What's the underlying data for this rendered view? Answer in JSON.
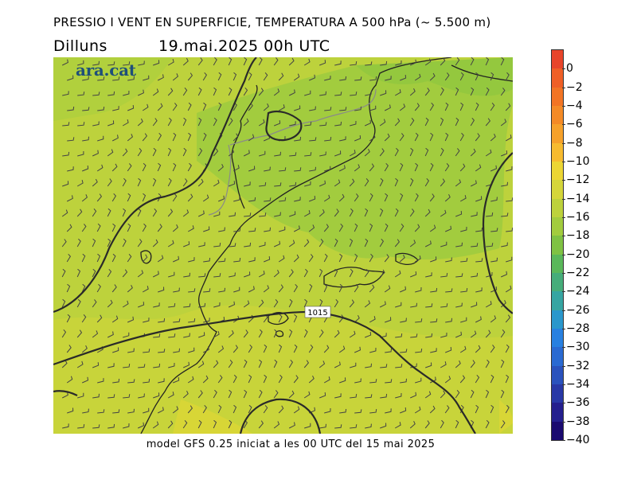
{
  "header": {
    "title": "PRESSIO I VENT EN SUPERFICIE, TEMPERATURA A 500 hPa (~ 5.500 m)",
    "day": "Dilluns",
    "datetime": "19.mai.2025 00h UTC"
  },
  "map": {
    "brand": "ara.cat",
    "isobar_label": "1015"
  },
  "footer": {
    "text": "model GFS 0.25 iniciat a les 00 UTC del 15 mai 2025"
  },
  "legend": {
    "labels": [
      "0",
      "−2",
      "−4",
      "−6",
      "−8",
      "−10",
      "−12",
      "−14",
      "−16",
      "−18",
      "−20",
      "−22",
      "−24",
      "−26",
      "−28",
      "−30",
      "−32",
      "−34",
      "−36",
      "−38",
      "−40"
    ],
    "colors": [
      "#e8452a",
      "#ef5f26",
      "#f27424",
      "#f48a26",
      "#f6a12a",
      "#f7bb2f",
      "#ecd634",
      "#d5d63a",
      "#bdd23c",
      "#a2cc3e",
      "#7fc243",
      "#5ab85a",
      "#46ad7a",
      "#36a5a2",
      "#2a97cc",
      "#2880e0",
      "#2a6ad2",
      "#2a52bd",
      "#2838a6",
      "#241f8e",
      "#1a0a70"
    ]
  }
}
